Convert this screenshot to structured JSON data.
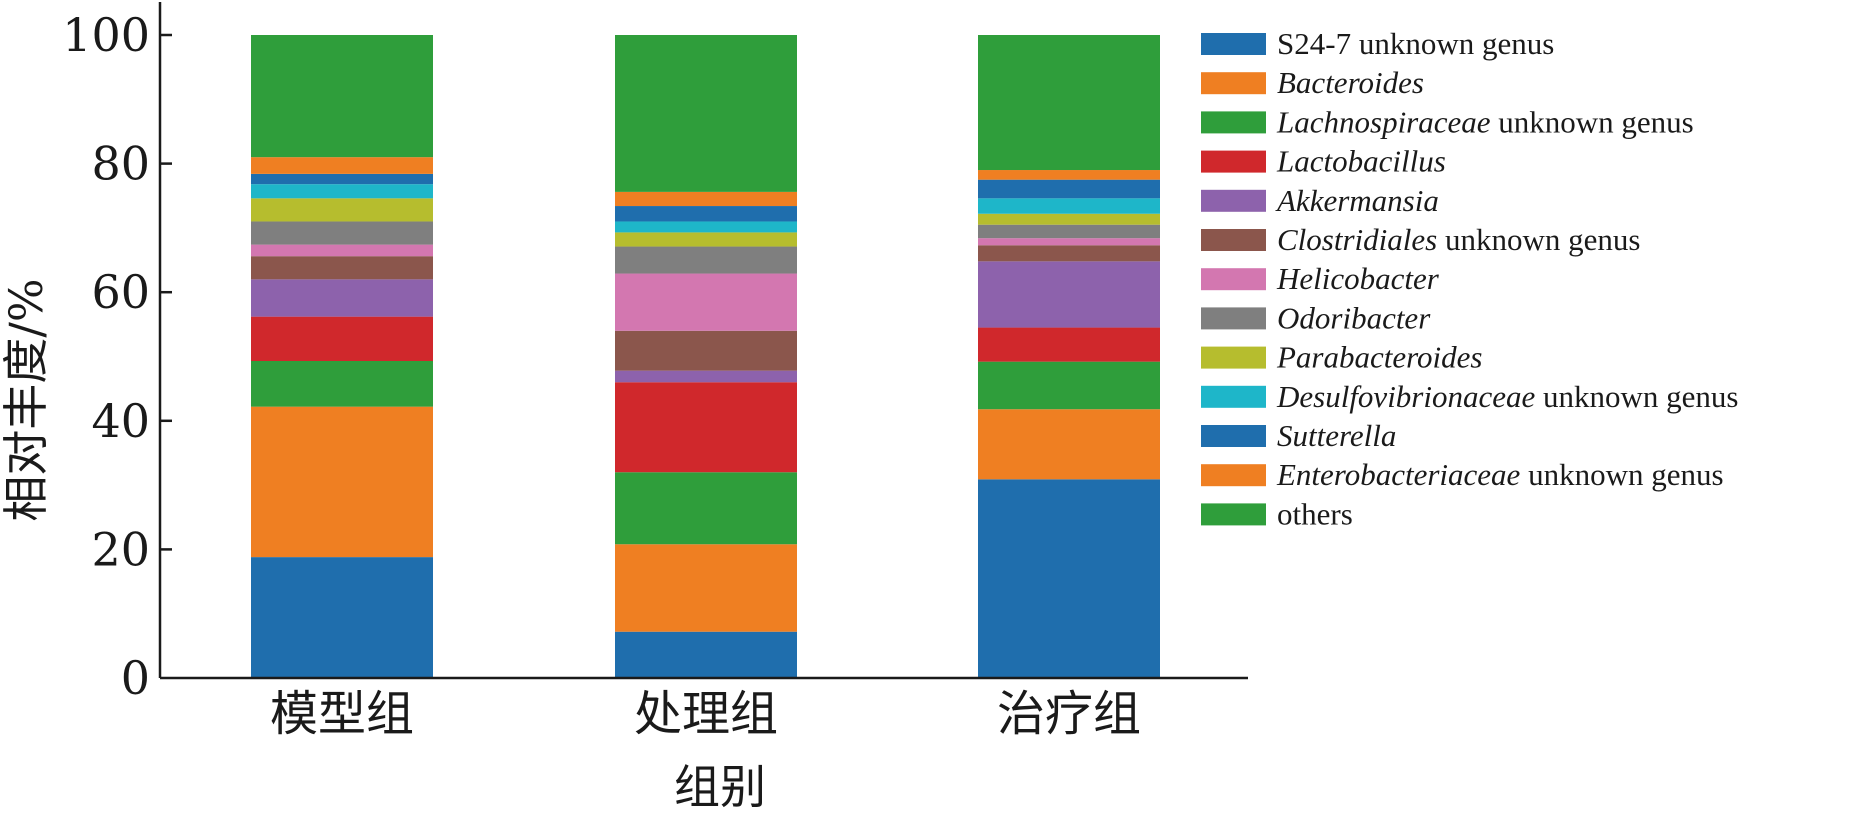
{
  "chart_data": {
    "type": "bar",
    "stacked": true,
    "xlabel": "组别",
    "ylabel": "相对丰度/%",
    "ylim": [
      0,
      100
    ],
    "yticks": [
      0,
      20,
      40,
      60,
      80,
      100
    ],
    "grid": false,
    "legend_position": "right",
    "categories": [
      "模型组",
      "处理组",
      "治疗组"
    ],
    "series": [
      {
        "name": "S24-7 unknown genus",
        "italic": "",
        "plain": "S24-7 unknown genus",
        "color": "#1f6ead",
        "values": [
          18.8,
          7.2,
          30.9
        ]
      },
      {
        "name": "Bacteroides",
        "italic": "Bacteroides",
        "plain": "",
        "color": "#ef7f22",
        "values": [
          23.4,
          13.6,
          10.9
        ]
      },
      {
        "name": "Lachnospiraceae unknown genus",
        "italic": "Lachnospiraceae",
        "plain": " unknown genus",
        "color": "#2f9e3b",
        "values": [
          7.1,
          11.2,
          7.4
        ]
      },
      {
        "name": "Lactobacillus",
        "italic": "Lactobacillus",
        "plain": "",
        "color": "#d0282c",
        "values": [
          6.9,
          14.0,
          5.3
        ]
      },
      {
        "name": "Akkermansia",
        "italic": "Akkermansia",
        "plain": "",
        "color": "#8d62ac",
        "values": [
          5.8,
          1.8,
          10.3
        ]
      },
      {
        "name": "Clostridiales unknown genus",
        "italic": "Clostridiales",
        "plain": " unknown genus",
        "color": "#8b564c",
        "values": [
          3.6,
          6.2,
          2.5
        ]
      },
      {
        "name": "Helicobacter",
        "italic": "Helicobacter",
        "plain": "",
        "color": "#d377b0",
        "values": [
          1.8,
          8.9,
          1.1
        ]
      },
      {
        "name": "Odoribacter",
        "italic": "Odoribacter",
        "plain": "",
        "color": "#7f7f7f",
        "values": [
          3.6,
          4.2,
          2.1
        ]
      },
      {
        "name": "Parabacteroides",
        "italic": "Parabacteroides",
        "plain": "",
        "color": "#b6bd2e",
        "values": [
          3.6,
          2.2,
          1.7
        ]
      },
      {
        "name": "Desulfovibrionaceae unknown genus",
        "italic": "Desulfovibrionaceae",
        "plain": " unknown genus",
        "color": "#1eb6c9",
        "values": [
          2.2,
          1.7,
          2.4
        ]
      },
      {
        "name": "Sutterella",
        "italic": "Sutterella",
        "plain": "",
        "color": "#1f6ead",
        "values": [
          1.6,
          2.4,
          2.9
        ]
      },
      {
        "name": "Enterobacteriaceae unknown genus",
        "italic": "Enterobacteriaceae",
        "plain": " unknown genus",
        "color": "#ef7f22",
        "values": [
          2.6,
          2.2,
          1.5
        ]
      },
      {
        "name": "others",
        "italic": "",
        "plain": "others",
        "color": "#2f9e3b",
        "values": [
          19.0,
          24.4,
          21.0
        ]
      }
    ]
  }
}
